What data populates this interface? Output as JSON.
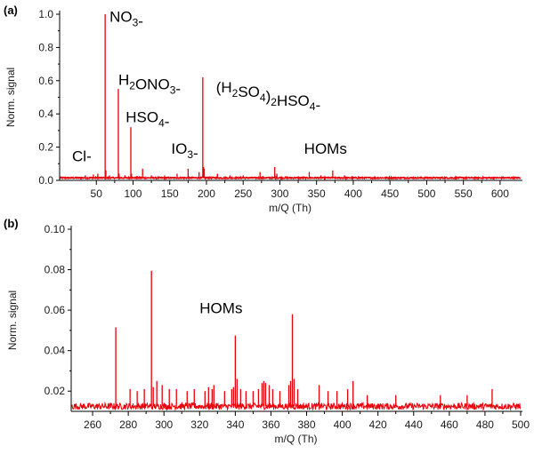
{
  "chart_data": [
    {
      "panel_label": "(a)",
      "type": "line",
      "xlabel": "m/Q (Th)",
      "ylabel": "Norm. signal",
      "xlim": [
        0,
        628
      ],
      "ylim": [
        0,
        1.0
      ],
      "xticks": [
        50,
        100,
        150,
        200,
        250,
        300,
        350,
        400,
        450,
        500,
        550,
        600
      ],
      "yticks": [
        0.0,
        0.2,
        0.4,
        0.6,
        0.8,
        1.0
      ],
      "ytick_decimals": 1,
      "baseline": 0.015,
      "line_color": "#e8000b",
      "peaks": [
        {
          "x": 35,
          "y": 0.03
        },
        {
          "x": 46,
          "y": 0.035
        },
        {
          "x": 52,
          "y": 0.04
        },
        {
          "x": 62,
          "y": 1.0
        },
        {
          "x": 63,
          "y": 0.06
        },
        {
          "x": 68,
          "y": 0.03
        },
        {
          "x": 80,
          "y": 0.55
        },
        {
          "x": 81,
          "y": 0.04
        },
        {
          "x": 89,
          "y": 0.03
        },
        {
          "x": 97,
          "y": 0.32
        },
        {
          "x": 98,
          "y": 0.04
        },
        {
          "x": 113,
          "y": 0.07
        },
        {
          "x": 125,
          "y": 0.03
        },
        {
          "x": 143,
          "y": 0.03
        },
        {
          "x": 160,
          "y": 0.04
        },
        {
          "x": 175,
          "y": 0.07
        },
        {
          "x": 190,
          "y": 0.05
        },
        {
          "x": 195,
          "y": 0.62
        },
        {
          "x": 196,
          "y": 0.08
        },
        {
          "x": 197,
          "y": 0.07
        },
        {
          "x": 215,
          "y": 0.04
        },
        {
          "x": 232,
          "y": 0.03
        },
        {
          "x": 250,
          "y": 0.03
        },
        {
          "x": 273,
          "y": 0.05
        },
        {
          "x": 293,
          "y": 0.08
        },
        {
          "x": 296,
          "y": 0.04
        },
        {
          "x": 340,
          "y": 0.05
        },
        {
          "x": 356,
          "y": 0.03
        },
        {
          "x": 372,
          "y": 0.06
        },
        {
          "x": 388,
          "y": 0.03
        },
        {
          "x": 407,
          "y": 0.025
        }
      ],
      "annotations": [
        {
          "parts": [
            {
              "t": "Cl-"
            }
          ],
          "x": 17,
          "y": 0.115
        },
        {
          "parts": [
            {
              "t": "NO"
            },
            {
              "t": "3",
              "sub": true
            },
            {
              "t": "-"
            }
          ],
          "x": 68,
          "y": 0.955
        },
        {
          "parts": [
            {
              "t": "H"
            },
            {
              "t": "2",
              "sub": true
            },
            {
              "t": "ONO"
            },
            {
              "t": "3",
              "sub": true
            },
            {
              "t": "-"
            }
          ],
          "x": 80,
          "y": 0.575
        },
        {
          "parts": [
            {
              "t": "HSO"
            },
            {
              "t": "4",
              "sub": true
            },
            {
              "t": "-"
            }
          ],
          "x": 90,
          "y": 0.35
        },
        {
          "parts": [
            {
              "t": "IO"
            },
            {
              "t": "3",
              "sub": true
            },
            {
              "t": "-"
            }
          ],
          "x": 152,
          "y": 0.16
        },
        {
          "parts": [
            {
              "t": "(H"
            },
            {
              "t": "2",
              "sub": true
            },
            {
              "t": "SO"
            },
            {
              "t": "4",
              "sub": true
            },
            {
              "t": ")"
            },
            {
              "t": "2",
              "sub": true
            },
            {
              "t": "HSO"
            },
            {
              "t": "4",
              "sub": true
            },
            {
              "t": "-"
            }
          ],
          "x": 213,
          "y": 0.53
        },
        {
          "parts": [
            {
              "t": "HOMs"
            }
          ],
          "x": 333,
          "y": 0.16
        }
      ]
    },
    {
      "panel_label": "(b)",
      "type": "line",
      "xlabel": "m/Q (Th)",
      "ylabel": "Norm. signal",
      "xlim": [
        248,
        500
      ],
      "ylim": [
        0.01,
        0.1
      ],
      "xticks": [
        260,
        280,
        300,
        320,
        340,
        360,
        380,
        400,
        420,
        440,
        460,
        480,
        500
      ],
      "yticks": [
        0.02,
        0.04,
        0.06,
        0.08,
        0.1
      ],
      "ytick_decimals": 2,
      "baseline": 0.0125,
      "line_color": "#e8000b",
      "peaks": [
        {
          "x": 273,
          "y": 0.0515
        },
        {
          "x": 281,
          "y": 0.021
        },
        {
          "x": 285,
          "y": 0.02
        },
        {
          "x": 289,
          "y": 0.021
        },
        {
          "x": 293,
          "y": 0.0795
        },
        {
          "x": 294,
          "y": 0.022
        },
        {
          "x": 296,
          "y": 0.025
        },
        {
          "x": 299,
          "y": 0.023
        },
        {
          "x": 303,
          "y": 0.021
        },
        {
          "x": 307,
          "y": 0.021
        },
        {
          "x": 313,
          "y": 0.02
        },
        {
          "x": 317,
          "y": 0.021
        },
        {
          "x": 323,
          "y": 0.02
        },
        {
          "x": 325,
          "y": 0.022
        },
        {
          "x": 327,
          "y": 0.021
        },
        {
          "x": 328,
          "y": 0.023
        },
        {
          "x": 334,
          "y": 0.02
        },
        {
          "x": 338,
          "y": 0.021
        },
        {
          "x": 339,
          "y": 0.022
        },
        {
          "x": 340,
          "y": 0.0475
        },
        {
          "x": 341,
          "y": 0.026
        },
        {
          "x": 343,
          "y": 0.021
        },
        {
          "x": 346,
          "y": 0.02
        },
        {
          "x": 350,
          "y": 0.02
        },
        {
          "x": 353,
          "y": 0.021
        },
        {
          "x": 355,
          "y": 0.024
        },
        {
          "x": 356,
          "y": 0.025
        },
        {
          "x": 357,
          "y": 0.024
        },
        {
          "x": 359,
          "y": 0.023
        },
        {
          "x": 361,
          "y": 0.021
        },
        {
          "x": 365,
          "y": 0.02
        },
        {
          "x": 370,
          "y": 0.023
        },
        {
          "x": 371,
          "y": 0.025
        },
        {
          "x": 372,
          "y": 0.058
        },
        {
          "x": 373,
          "y": 0.026
        },
        {
          "x": 375,
          "y": 0.021
        },
        {
          "x": 387,
          "y": 0.023
        },
        {
          "x": 392,
          "y": 0.02
        },
        {
          "x": 397,
          "y": 0.02
        },
        {
          "x": 403,
          "y": 0.021
        },
        {
          "x": 406,
          "y": 0.025
        },
        {
          "x": 414,
          "y": 0.018
        },
        {
          "x": 430,
          "y": 0.018
        },
        {
          "x": 455,
          "y": 0.018
        },
        {
          "x": 470,
          "y": 0.018
        },
        {
          "x": 484,
          "y": 0.021
        }
      ],
      "annotations": [
        {
          "parts": [
            {
              "t": "HOMs"
            }
          ],
          "x": 320,
          "y": 0.0585
        }
      ]
    }
  ]
}
